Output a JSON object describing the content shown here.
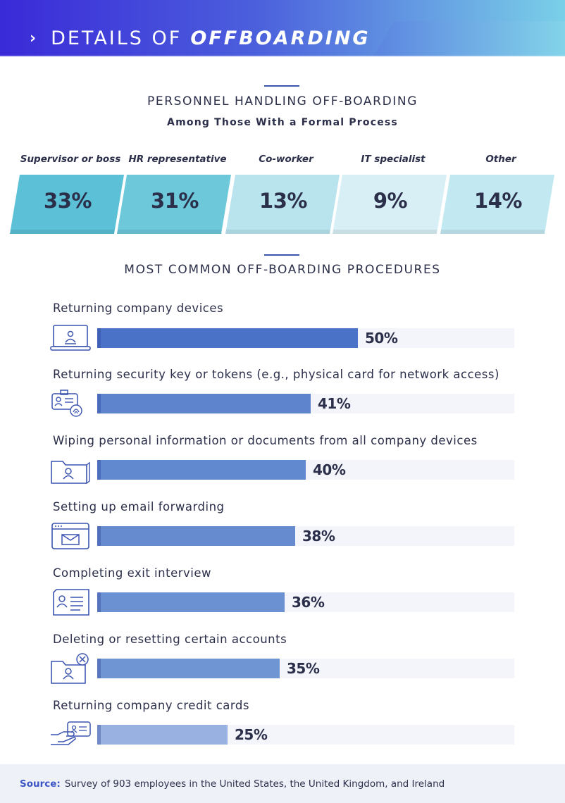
{
  "header": {
    "chevron": "›",
    "title_light": "DETAILS OF",
    "title_bold": "OFFBOARDING",
    "gradient_start": "#3a2ad8",
    "gradient_end": "#7ad0e8"
  },
  "personnel": {
    "title": "PERSONNEL HANDLING OFF-BOARDING",
    "subtitle": "Among Those With a Formal Process"
  },
  "procedures": {
    "title": "MOST COMMON OFF-BOARDING PROCEDURES",
    "icons": [
      "laptop-icon",
      "id-badge-fingerprint-icon",
      "folder-user-icon",
      "email-window-icon",
      "id-card-icon",
      "folder-user-delete-icon",
      "hand-credit-card-icon"
    ]
  },
  "chart_data": [
    {
      "type": "bar",
      "title": "PERSONNEL HANDLING OFF-BOARDING",
      "subtitle": "Among Those With a Formal Process",
      "categories": [
        "Supervisor or boss",
        "HR representative",
        "Co-worker",
        "IT specialist",
        "Other"
      ],
      "values": [
        33,
        31,
        13,
        9,
        14
      ],
      "value_labels": [
        "33%",
        "31%",
        "13%",
        "9%",
        "14%"
      ],
      "unit": "%",
      "colors": [
        "#5cc0d6",
        "#6dc8da",
        "#b9e4ee",
        "#d8eff5",
        "#c2e8f1"
      ]
    },
    {
      "type": "bar",
      "orientation": "horizontal",
      "title": "MOST COMMON OFF-BOARDING PROCEDURES",
      "categories": [
        "Returning company devices",
        "Returning security key or tokens (e.g., physical card for network access)",
        "Wiping personal information or documents from all company devices",
        "Setting up email forwarding",
        "Completing exit interview",
        "Deleting or resetting certain accounts",
        "Returning company credit cards"
      ],
      "values": [
        50,
        41,
        40,
        38,
        36,
        35,
        25
      ],
      "value_labels": [
        "50%",
        "41%",
        "40%",
        "38%",
        "36%",
        "35%",
        "25%"
      ],
      "unit": "%",
      "xlim": [
        0,
        80
      ],
      "colors": [
        "#4a73c8",
        "#5d84cc",
        "#6189cf",
        "#668ccf",
        "#6c91d2",
        "#7095d3",
        "#98b1e0"
      ]
    }
  ],
  "footer": {
    "label": "Source:",
    "text": "Survey of 903 employees in the United States, the United Kingdom, and Ireland"
  }
}
